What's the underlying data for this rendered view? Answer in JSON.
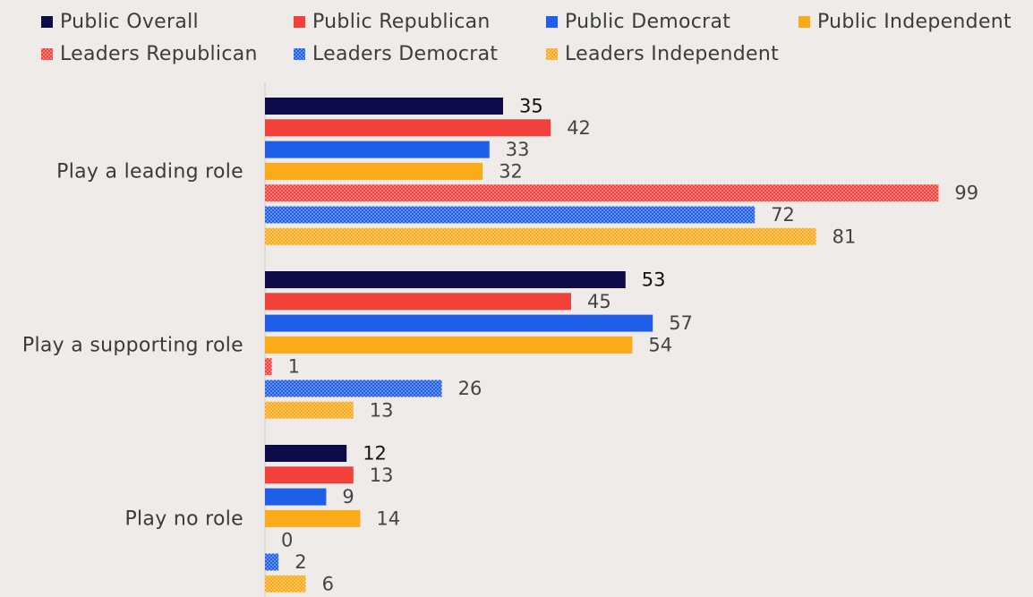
{
  "colors": {
    "public_overall": "#0d0b4a",
    "republican": "#f2413a",
    "democrat": "#1f5fe8",
    "independent": "#fbaa1a",
    "background": "#efebe8",
    "axis": "#cfcac6",
    "text": "#3a3a3a"
  },
  "legend": [
    {
      "label": "Public Overall",
      "color": "#0d0b4a",
      "pattern": false
    },
    {
      "label": "Public Republican",
      "color": "#f2413a",
      "pattern": false
    },
    {
      "label": "Public Democrat",
      "color": "#1f5fe8",
      "pattern": false
    },
    {
      "label": "Public Independent",
      "color": "#fbaa1a",
      "pattern": false
    },
    {
      "label": "Leaders Republican",
      "color": "#f2413a",
      "pattern": true
    },
    {
      "label": "Leaders Democrat",
      "color": "#1f5fe8",
      "pattern": true
    },
    {
      "label": "Leaders Independent",
      "color": "#fbaa1a",
      "pattern": true
    }
  ],
  "chart_data": {
    "type": "bar",
    "orientation": "horizontal",
    "title": "",
    "xlabel": "",
    "ylabel": "",
    "categories": [
      "Play a leading role",
      "Play a supporting role",
      "Play no role"
    ],
    "series": [
      {
        "name": "Public Overall",
        "values": [
          35,
          53,
          12
        ],
        "color": "#0d0b4a",
        "pattern": false
      },
      {
        "name": "Public Republican",
        "values": [
          42,
          45,
          13
        ],
        "color": "#f2413a",
        "pattern": false
      },
      {
        "name": "Public Democrat",
        "values": [
          33,
          57,
          9
        ],
        "color": "#1f5fe8",
        "pattern": false
      },
      {
        "name": "Public Independent",
        "values": [
          32,
          54,
          14
        ],
        "color": "#fbaa1a",
        "pattern": false
      },
      {
        "name": "Leaders Republican",
        "values": [
          99,
          1,
          0
        ],
        "color": "#f2413a",
        "pattern": true
      },
      {
        "name": "Leaders Democrat",
        "values": [
          72,
          26,
          2
        ],
        "color": "#1f5fe8",
        "pattern": true
      },
      {
        "name": "Leaders Independent",
        "values": [
          81,
          13,
          6
        ],
        "color": "#fbaa1a",
        "pattern": true
      }
    ],
    "xlim": [
      0,
      100
    ],
    "grid": false,
    "legend_position": "top"
  }
}
